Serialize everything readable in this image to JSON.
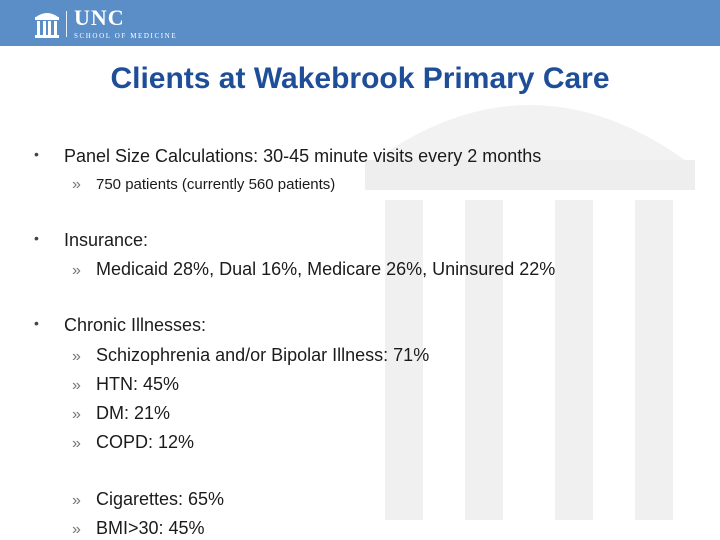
{
  "header": {
    "logo_unc": "UNC",
    "logo_sub": "SCHOOL OF MEDICINE"
  },
  "title": "Clients at Wakebrook Primary Care",
  "bullets": [
    {
      "text": "Panel Size Calculations: 30-45 minute visits every 2 months",
      "sub": [
        "750 patients (currently 560 patients)"
      ]
    },
    {
      "text": "Insurance:",
      "sub": [
        "Medicaid 28%, Dual 16%, Medicare 26%, Uninsured 22%"
      ]
    },
    {
      "text": "Chronic Illnesses:",
      "sub": [
        "Schizophrenia and/or Bipolar Illness: 71%",
        "HTN: 45%",
        "DM: 21%",
        "COPD: 12%",
        "Cigarettes: 65%",
        "BMI>30: 45%"
      ]
    }
  ],
  "colors": {
    "header": "#5b8ec7",
    "title": "#1f4e99",
    "watermark": "#f0f0f0"
  }
}
